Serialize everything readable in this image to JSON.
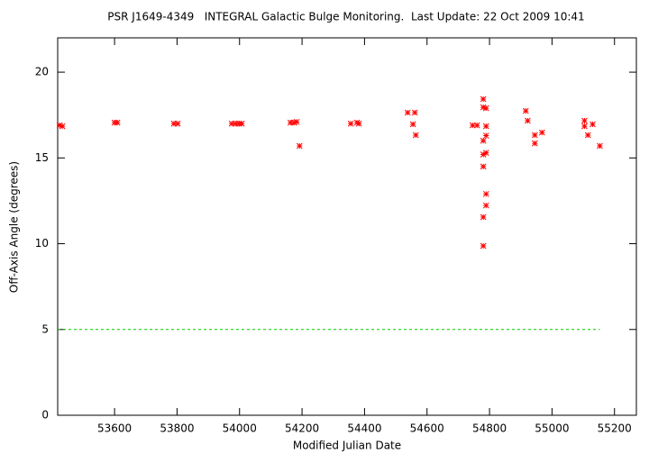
{
  "chart_data": {
    "type": "scatter",
    "title": "PSR J1649-4349   INTEGRAL Galactic Bulge Monitoring.  Last Update: 22 Oct 2009 10:41",
    "x_label": "Modified Julian Date",
    "y_label": "Off-Axis Angle (degrees)",
    "xlim": [
      53418,
      55270
    ],
    "ylim": [
      0,
      22
    ],
    "xticks": [
      53600,
      53800,
      54000,
      54200,
      54400,
      54600,
      54800,
      55000,
      55200
    ],
    "yticks": [
      0,
      5,
      10,
      15,
      20
    ],
    "series": [
      {
        "color": "#ff0000",
        "marker": "asterisk",
        "x": [
          53424,
          53433,
          53600,
          53609,
          53790,
          53802,
          53975,
          53987,
          53998,
          54007,
          54163,
          54174,
          54183,
          54192,
          54356,
          54376,
          54382,
          54538,
          54561,
          54555,
          54564,
          54746,
          54760,
          54780,
          54780,
          54780,
          54780,
          54780,
          54780,
          54780,
          54789,
          54789,
          54789,
          54789,
          54789,
          54789,
          54916,
          54922,
          54945,
          54945,
          54968,
          55104,
          55104,
          55130,
          55115,
          55153
        ],
        "values": [
          16.9,
          16.85,
          17.06,
          17.06,
          17.0,
          17.0,
          17.0,
          17.0,
          17.0,
          17.0,
          17.06,
          17.06,
          17.1,
          15.7,
          17.0,
          17.06,
          17.0,
          17.64,
          17.64,
          16.96,
          16.33,
          16.9,
          16.9,
          18.43,
          17.95,
          16.0,
          15.2,
          14.5,
          11.55,
          9.87,
          16.85,
          16.3,
          15.3,
          12.9,
          12.23,
          17.9,
          17.74,
          17.17,
          16.33,
          15.85,
          16.48,
          17.17,
          16.85,
          16.96,
          16.33,
          15.7
        ]
      },
      {
        "color": "#00cc00",
        "style": "dashed-line",
        "x": [
          53418,
          55153
        ],
        "values": [
          5,
          5
        ]
      }
    ]
  }
}
